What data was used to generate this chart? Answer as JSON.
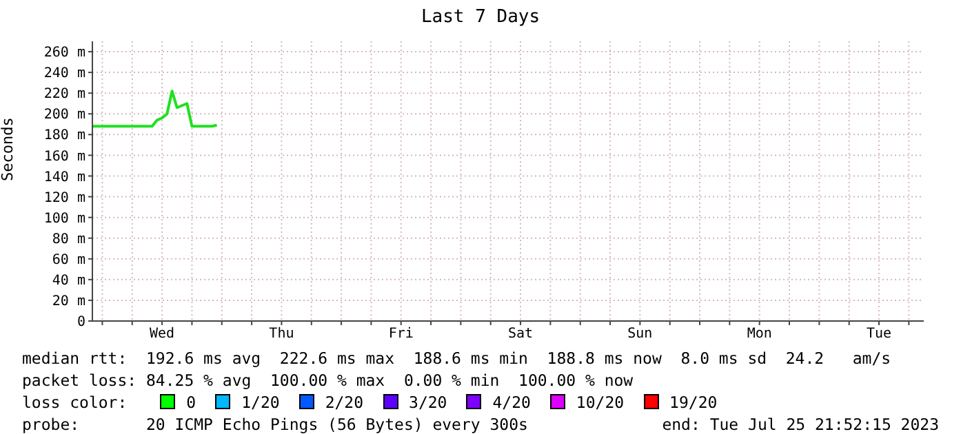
{
  "chart_data": {
    "type": "line",
    "title": "Last 7 Days",
    "ylabel": "Seconds",
    "categories": [
      null,
      null,
      null,
      null,
      null,
      null,
      null,
      null,
      null,
      null,
      null,
      null,
      null,
      null,
      "Wed",
      null,
      null,
      null,
      null,
      null,
      null,
      null,
      null,
      null,
      null,
      null,
      null,
      null,
      null,
      null,
      null,
      null,
      null,
      null,
      null,
      null,
      null,
      null,
      "Thu",
      null,
      null,
      null,
      null,
      null,
      null,
      null,
      null,
      null,
      null,
      null,
      null,
      null,
      null,
      null,
      null,
      null,
      null,
      null,
      null,
      null,
      null,
      null,
      "Fri",
      null,
      null,
      null,
      null,
      null,
      null,
      null,
      null,
      null,
      null,
      null,
      null,
      null,
      null,
      null,
      null,
      null,
      null,
      null,
      null,
      null,
      null,
      null,
      "Sat",
      null,
      null,
      null,
      null,
      null,
      null,
      null,
      null,
      null,
      null,
      null,
      null,
      null,
      null,
      null,
      null,
      null,
      null,
      null,
      null,
      null,
      null,
      null,
      "Sun",
      null,
      null,
      null,
      null,
      null,
      null,
      null,
      null,
      null,
      null,
      null,
      null,
      null,
      null,
      null,
      null,
      null,
      null,
      null,
      null,
      null,
      null,
      null,
      "Mon",
      null,
      null,
      null,
      null,
      null,
      null,
      null,
      null,
      null,
      null,
      null,
      null,
      null,
      null,
      null,
      null,
      null,
      null,
      null,
      null,
      null,
      null,
      null,
      "Tue",
      null,
      null,
      null,
      null,
      null,
      null,
      null,
      null,
      null
    ],
    "series": [
      {
        "color": "#20e020",
        "values": [
          188,
          188,
          188,
          188,
          188,
          188,
          188,
          188,
          188,
          188,
          188,
          188,
          188,
          194,
          196,
          200,
          222,
          206,
          208,
          210,
          188,
          188,
          188,
          188,
          188,
          189,
          null,
          null,
          null,
          null,
          null,
          null,
          null,
          null,
          null,
          null,
          null,
          null,
          null,
          null,
          null,
          null,
          null,
          null,
          null,
          null,
          null,
          null,
          null,
          null,
          null,
          null,
          null,
          null,
          null,
          null,
          null,
          null,
          null,
          null,
          null,
          null,
          null,
          null,
          null,
          null,
          null,
          null,
          null,
          null,
          null,
          null,
          null,
          null,
          null,
          null,
          null,
          null,
          null,
          null,
          null,
          null,
          null,
          null,
          null,
          null,
          null,
          null,
          null,
          null,
          null,
          null,
          null,
          null,
          null,
          null,
          null,
          null,
          null,
          null,
          null,
          null,
          null,
          null,
          null,
          null,
          null,
          null,
          null,
          null,
          null,
          null,
          null,
          null,
          null,
          null,
          null,
          null,
          null,
          null,
          null,
          null,
          null,
          null,
          null,
          null,
          null,
          null,
          null,
          null,
          null,
          null,
          null,
          null,
          null,
          null,
          null,
          null,
          null,
          null,
          null,
          null,
          null,
          null,
          null,
          null,
          null,
          null,
          null,
          null,
          null,
          null,
          null,
          null,
          null,
          null,
          null,
          null,
          null,
          null,
          null,
          null,
          null,
          null,
          null,
          null,
          null,
          null
        ]
      }
    ],
    "ylim": [
      0,
      270
    ],
    "yticks": [
      {
        "value": 0,
        "label": "0"
      },
      {
        "value": 20,
        "label": "20 m"
      },
      {
        "value": 40,
        "label": "40 m"
      },
      {
        "value": 60,
        "label": "60 m"
      },
      {
        "value": 80,
        "label": "80 m"
      },
      {
        "value": 100,
        "label": "100 m"
      },
      {
        "value": 120,
        "label": "120 m"
      },
      {
        "value": 140,
        "label": "140 m"
      },
      {
        "value": 160,
        "label": "160 m"
      },
      {
        "value": 180,
        "label": "180 m"
      },
      {
        "value": 200,
        "label": "200 m"
      },
      {
        "value": 220,
        "label": "220 m"
      },
      {
        "value": 240,
        "label": "240 m"
      },
      {
        "value": 260,
        "label": "260 m"
      }
    ],
    "grid": true,
    "legend": false,
    "marker": "none",
    "line_style": "solid",
    "annotations": [
      "median rtt:  192.6 ms avg  222.6 ms max  188.6 ms min  188.8 ms now  8.0 ms sd  24.2   am/s",
      "packet loss: 84.25 % avg  100.00 % max  0.00 % min  100.00 % now",
      "loss color:",
      "0",
      "1/20",
      "2/20",
      "3/20",
      "4/20",
      "10/20",
      "19/20",
      "probe:       20 ICMP Echo Pings (56 Bytes) every 300s",
      "end: Tue Jul 25 21:52:15 2023"
    ]
  }
}
